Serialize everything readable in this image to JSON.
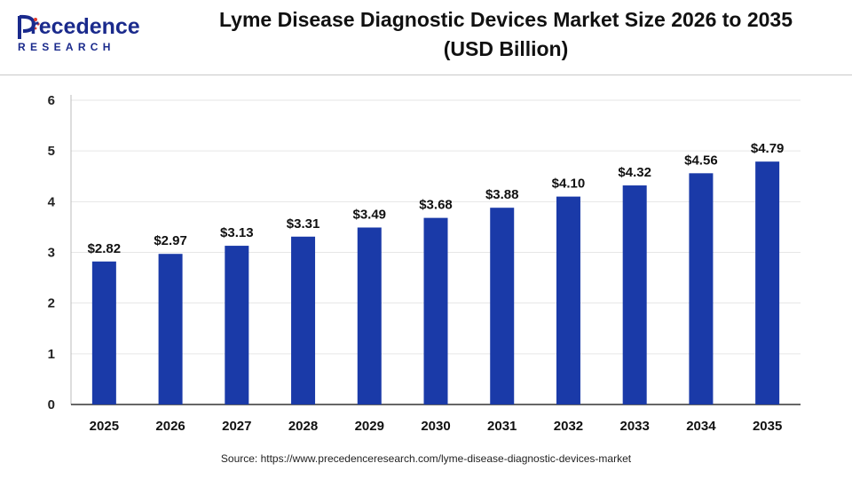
{
  "header": {
    "logo_word": "recedence",
    "logo_initial": "P",
    "logo_sub": "RESEARCH",
    "title_line1": "Lyme Disease Diagnostic Devices Market Size 2026 to 2035",
    "title_line2": "(USD Billion)"
  },
  "footer": {
    "source": "Source: https://www.precedenceresearch.com/lyme-disease-diagnostic-devices-market"
  },
  "colors": {
    "bar": "#1a3aa8",
    "brand": "#1a2a8c",
    "grid": "#e6e6e6",
    "axis": "#333333"
  },
  "chart_data": {
    "type": "bar",
    "categories": [
      "2025",
      "2026",
      "2027",
      "2028",
      "2029",
      "2030",
      "2031",
      "2032",
      "2033",
      "2034",
      "2035"
    ],
    "values": [
      2.82,
      2.97,
      3.13,
      3.31,
      3.49,
      3.68,
      3.88,
      4.1,
      4.32,
      4.56,
      4.79
    ],
    "data_labels": [
      "$2.82",
      "$2.97",
      "$3.13",
      "$3.31",
      "$3.49",
      "$3.68",
      "$3.88",
      "$4.10",
      "$4.32",
      "$4.56",
      "$4.79"
    ],
    "yticks": [
      "0",
      "1",
      "2",
      "3",
      "4",
      "5",
      "6"
    ],
    "ylim": [
      0,
      6
    ],
    "grid": true,
    "legend": "none"
  }
}
